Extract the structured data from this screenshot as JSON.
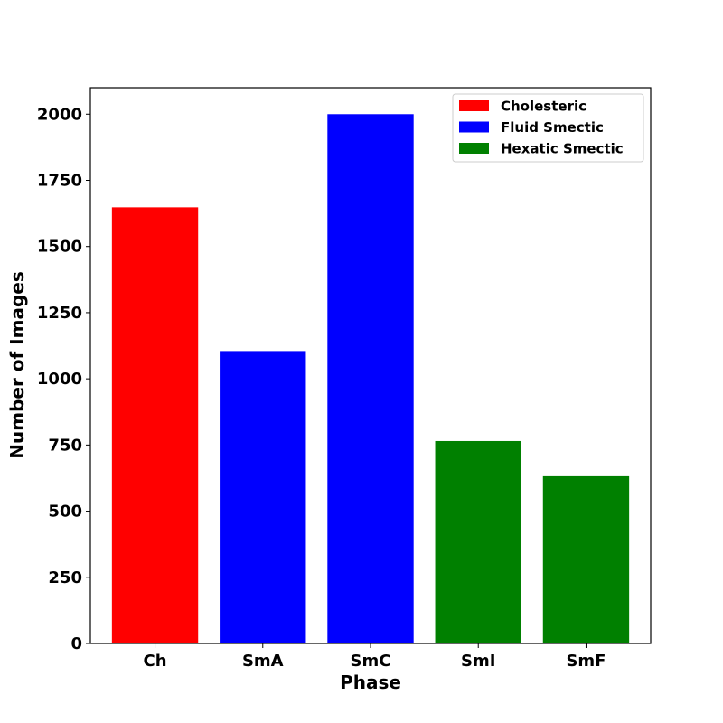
{
  "chart_data": {
    "type": "bar",
    "title": "",
    "xlabel": "Phase",
    "ylabel": "Number of Images",
    "categories": [
      "Ch",
      "SmA",
      "SmC",
      "SmI",
      "SmF"
    ],
    "values": [
      1648,
      1105,
      2000,
      765,
      632
    ],
    "bar_groups": [
      "Cholesteric",
      "Fluid Smectic",
      "Fluid Smectic",
      "Hexatic Smectic",
      "Hexatic Smectic"
    ],
    "ylim": [
      0,
      2100
    ],
    "yticks": [
      0,
      250,
      500,
      750,
      1000,
      1250,
      1500,
      1750,
      2000
    ],
    "grid": false,
    "legend": {
      "position": "top-right",
      "entries": [
        {
          "label": "Cholesteric",
          "color": "#ff0000"
        },
        {
          "label": "Fluid Smectic",
          "color": "#0000ff"
        },
        {
          "label": "Hexatic Smectic",
          "color": "#008000"
        }
      ]
    }
  }
}
